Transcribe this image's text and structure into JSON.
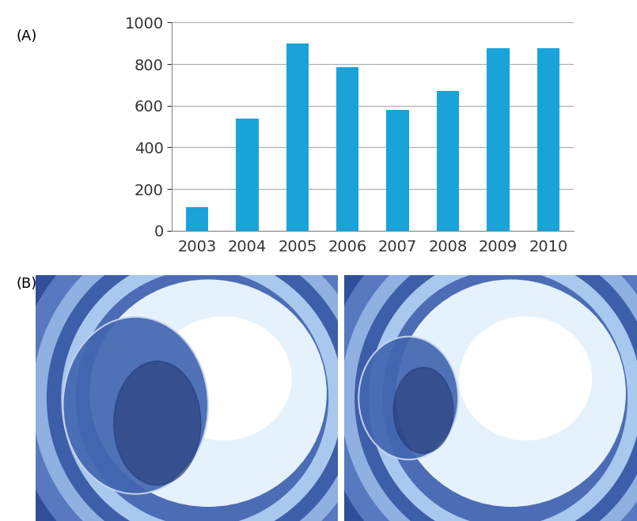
{
  "panel_labels": [
    "(A)",
    "(B)"
  ],
  "chart_data": {
    "type": "bar",
    "categories": [
      "2003",
      "2004",
      "2005",
      "2006",
      "2007",
      "2008",
      "2009",
      "2010"
    ],
    "values": [
      115,
      540,
      900,
      785,
      580,
      670,
      875,
      875
    ],
    "color": "#19a3d9",
    "ylim": [
      0,
      1000
    ],
    "yticks": [
      0,
      200,
      400,
      600,
      800,
      1000
    ],
    "grid": true
  }
}
